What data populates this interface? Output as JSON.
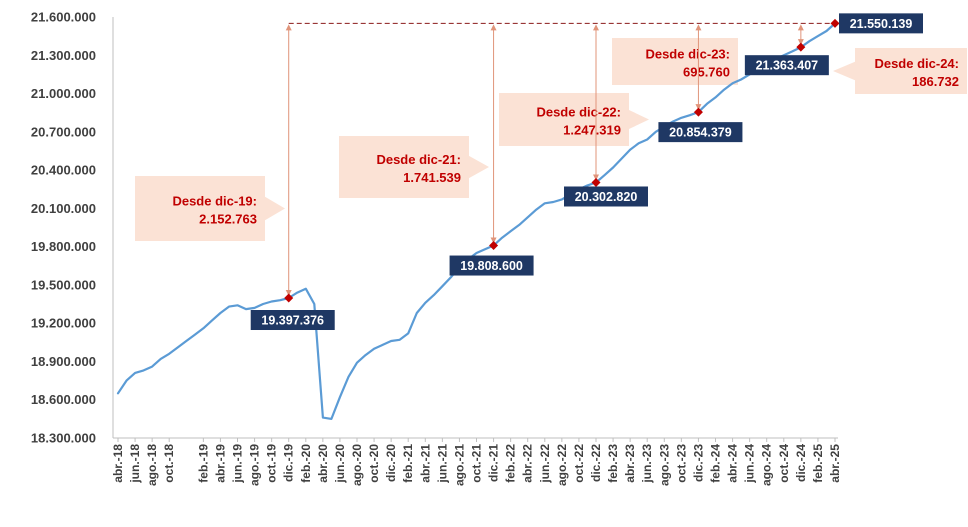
{
  "chart_data": {
    "type": "line",
    "title": "",
    "xlabel": "",
    "ylabel": "",
    "ylim": [
      18300000,
      21600000
    ],
    "y_ticks": [
      "18.300.000",
      "18.600.000",
      "18.900.000",
      "19.200.000",
      "19.500.000",
      "19.800.000",
      "20.100.000",
      "20.400.000",
      "20.700.000",
      "21.000.000",
      "21.300.000",
      "21.600.000"
    ],
    "x_labels": [
      "abr.-18",
      "jun.-18",
      "ago.-18",
      "oct.-18",
      "feb.-19",
      "abr.-19",
      "jun.-19",
      "ago.-19",
      "oct.-19",
      "dic.-19",
      "feb.-20",
      "abr.-20",
      "jun.-20",
      "ago.-20",
      "oct.-20",
      "dic.-20",
      "feb.-21",
      "abr.-21",
      "jun.-21",
      "ago.-21",
      "oct.-21",
      "dic.-21",
      "feb.-22",
      "abr.-22",
      "jun.-22",
      "ago.-22",
      "oct.-22",
      "dic.-22",
      "feb.-23",
      "abr.-23",
      "jun.-23",
      "ago.-23",
      "oct.-23",
      "dic.-23",
      "feb.-24",
      "abr.-24",
      "jun.-24",
      "ago.-24",
      "oct.-24",
      "dic.-24",
      "feb.-25",
      "abr.-25"
    ],
    "series": [
      {
        "color": "#5b9bd5",
        "x": [
          "abr.-18",
          "may.-18",
          "jun.-18",
          "jul.-18",
          "ago.-18",
          "sep.-18",
          "oct.-18",
          "nov.-18",
          "dic.-18",
          "ene.-19",
          "feb.-19",
          "mar.-19",
          "abr.-19",
          "may.-19",
          "jun.-19",
          "jul.-19",
          "ago.-19",
          "sep.-19",
          "oct.-19",
          "nov.-19",
          "dic.-19",
          "ene.-20",
          "feb.-20",
          "mar.-20",
          "abr.-20",
          "may.-20",
          "jun.-20",
          "jul.-20",
          "ago.-20",
          "sep.-20",
          "oct.-20",
          "nov.-20",
          "dic.-20",
          "ene.-21",
          "feb.-21",
          "mar.-21",
          "abr.-21",
          "may.-21",
          "jun.-21",
          "jul.-21",
          "ago.-21",
          "sep.-21",
          "oct.-21",
          "nov.-21",
          "dic.-21",
          "ene.-22",
          "feb.-22",
          "mar.-22",
          "abr.-22",
          "may.-22",
          "jun.-22",
          "jul.-22",
          "ago.-22",
          "sep.-22",
          "oct.-22",
          "nov.-22",
          "dic.-22",
          "ene.-23",
          "feb.-23",
          "mar.-23",
          "abr.-23",
          "may.-23",
          "jun.-23",
          "jul.-23",
          "ago.-23",
          "sep.-23",
          "oct.-23",
          "nov.-23",
          "dic.-23",
          "ene.-24",
          "feb.-24",
          "mar.-24",
          "abr.-24",
          "may.-24",
          "jun.-24",
          "jul.-24",
          "ago.-24",
          "sep.-24",
          "oct.-24",
          "nov.-24",
          "dic.-24",
          "ene.-25",
          "feb.-25",
          "mar.-25",
          "abr.-25"
        ],
        "values": [
          18650000,
          18750000,
          18810000,
          18830000,
          18860000,
          18920000,
          18960000,
          19010000,
          19060000,
          19110000,
          19160000,
          19220000,
          19280000,
          19330000,
          19340000,
          19310000,
          19320000,
          19350000,
          19370000,
          19380000,
          19397376,
          19440000,
          19470000,
          19350000,
          18460000,
          18450000,
          18620000,
          18780000,
          18890000,
          18950000,
          19000000,
          19030000,
          19060000,
          19070000,
          19120000,
          19280000,
          19360000,
          19420000,
          19490000,
          19560000,
          19640000,
          19700000,
          19750000,
          19780000,
          19808600,
          19870000,
          19920000,
          19970000,
          20030000,
          20090000,
          20140000,
          20150000,
          20170000,
          20210000,
          20250000,
          20280000,
          20302820,
          20360000,
          20420000,
          20490000,
          20560000,
          20610000,
          20640000,
          20700000,
          20740000,
          20780000,
          20810000,
          20830000,
          20854379,
          20920000,
          20970000,
          21030000,
          21080000,
          21110000,
          21150000,
          21200000,
          21240000,
          21270000,
          21300000,
          21330000,
          21363407,
          21410000,
          21450000,
          21490000,
          21550139
        ]
      }
    ],
    "points": [
      {
        "x": "dic.-19",
        "value_label": "19.397.376"
      },
      {
        "x": "dic.-21",
        "value_label": "19.808.600"
      },
      {
        "x": "dic.-22",
        "value_label": "20.302.820"
      },
      {
        "x": "dic.-23",
        "value_label": "20.854.379"
      },
      {
        "x": "dic.-24",
        "value_label": "21.363.407"
      },
      {
        "x": "abr.-25",
        "value_label": "21.550.139"
      }
    ],
    "annotations": [
      {
        "label": "Desde dic-19:",
        "value": "2.152.763"
      },
      {
        "label": "Desde dic-21:",
        "value": "1.741.539"
      },
      {
        "label": "Desde dic-22:",
        "value": "1.247.319"
      },
      {
        "label": "Desde dic-23:",
        "value": "695.760"
      },
      {
        "label": "Desde dic-24:",
        "value": "186.732"
      }
    ],
    "colors": {
      "line": "#5b9bd5",
      "marker": "#c00000",
      "value_box": "#1f3864",
      "annotation_box": "#fbe2d5",
      "annotation_text": "#c00000"
    },
    "grid": false
  }
}
